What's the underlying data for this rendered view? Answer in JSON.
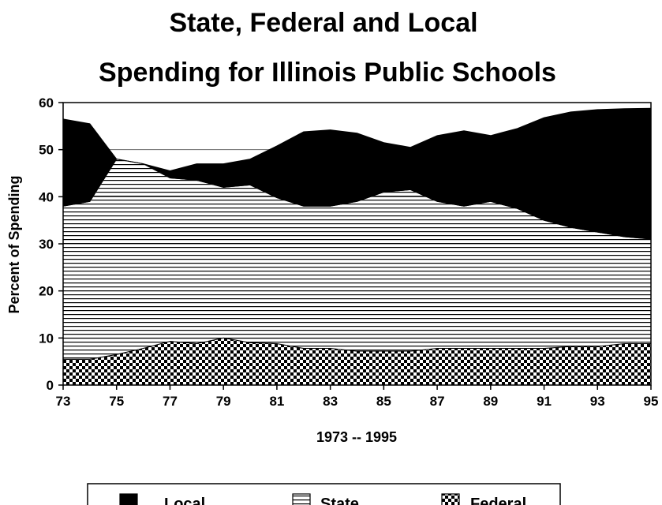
{
  "chart_data": {
    "type": "area",
    "stacked": true,
    "title_line1": "State, Federal and Local",
    "title_line2": "Spending for Illinois Public Schools",
    "xlabel": "1973 -- 1995",
    "ylabel": "Percent of Spending",
    "xlim": [
      73,
      95
    ],
    "ylim": [
      0,
      60
    ],
    "x_ticks": [
      "73",
      "75",
      "77",
      "79",
      "81",
      "83",
      "85",
      "87",
      "89",
      "91",
      "93",
      "95"
    ],
    "y_ticks": [
      "0",
      "10",
      "20",
      "30",
      "40",
      "50",
      "60"
    ],
    "grid": "horizontal",
    "legend_position": "bottom",
    "x": [
      73,
      74,
      75,
      76,
      77,
      78,
      79,
      80,
      81,
      82,
      83,
      84,
      85,
      86,
      87,
      88,
      89,
      90,
      91,
      92,
      93,
      94,
      95
    ],
    "series": [
      {
        "name": "Federal",
        "pattern": "checker",
        "values": [
          5.5,
          5.5,
          6.5,
          7.8,
          9.3,
          8.8,
          10,
          9,
          8.8,
          7.8,
          7.8,
          7.2,
          7.2,
          7.2,
          7.8,
          7.8,
          7.8,
          7.8,
          7.8,
          8.2,
          8.2,
          8.8,
          8.8
        ]
      },
      {
        "name": "State",
        "pattern": "horizontal-lines",
        "values": [
          32.5,
          33.5,
          41.5,
          39.2,
          34.7,
          34.7,
          32,
          33.5,
          31,
          30.2,
          30.2,
          31.8,
          33.8,
          34.3,
          31.2,
          30.2,
          31.2,
          29.7,
          27.2,
          25.3,
          24.3,
          22.7,
          22.2
        ]
      },
      {
        "name": "Local",
        "pattern": "solid",
        "values": [
          18.5,
          16.5,
          0,
          0,
          1.5,
          3.5,
          5,
          5.5,
          11,
          15.8,
          16.2,
          14.5,
          10.5,
          9,
          14,
          16,
          14,
          17,
          21.8,
          24.5,
          26,
          27.2,
          27.8
        ]
      }
    ],
    "legend": [
      "Local",
      "State",
      "Federal"
    ]
  }
}
